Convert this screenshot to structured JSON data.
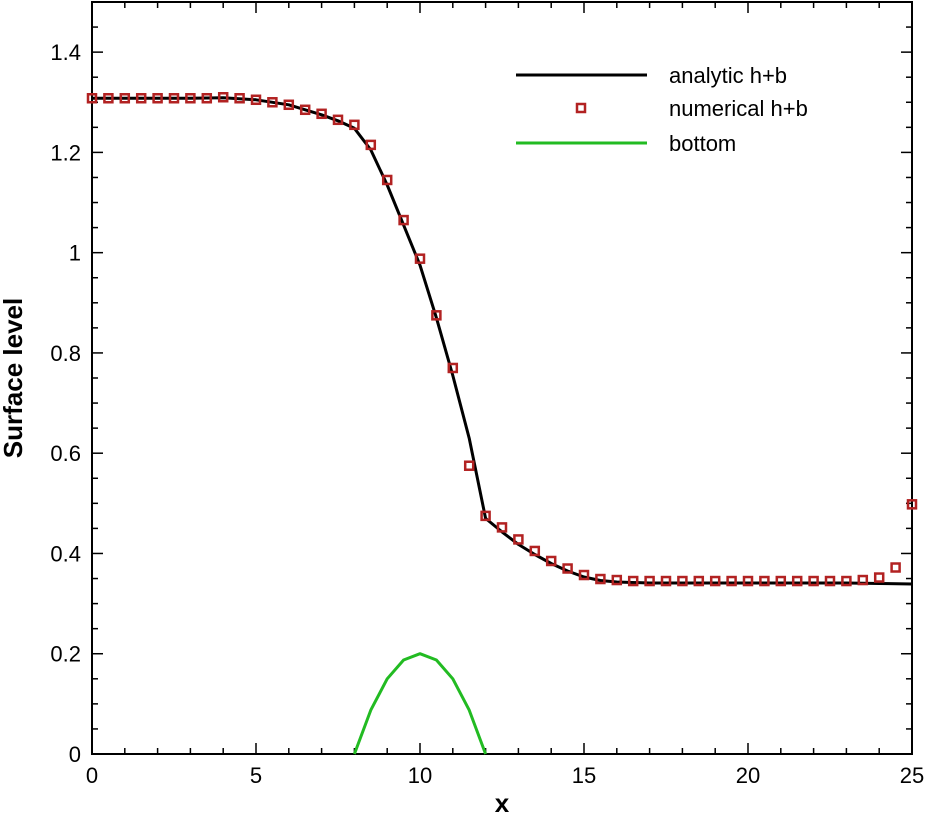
{
  "chart_data": {
    "type": "line",
    "title": "",
    "xlabel": "x",
    "ylabel": "Surface level",
    "xlim": [
      0,
      25
    ],
    "ylim": [
      0,
      1.5
    ],
    "x_ticks": [
      "0",
      "5",
      "10",
      "15",
      "20",
      "25"
    ],
    "y_ticks": [
      "0",
      "0.2",
      "0.4",
      "0.6",
      "0.8",
      "1",
      "1.2",
      "1.4"
    ],
    "grid": false,
    "legend_position": "top-right",
    "series": [
      {
        "name": "analytic h+b",
        "style": "line",
        "color": "#000000",
        "x": [
          0,
          1,
          2,
          3,
          4,
          5,
          6,
          6.5,
          7,
          7.5,
          8,
          8.5,
          9,
          9.5,
          10,
          10.5,
          11,
          11.5,
          12,
          12.5,
          13,
          13.5,
          14,
          14.5,
          15,
          15.5,
          16,
          17,
          18,
          19,
          20,
          21,
          22,
          23,
          24,
          25
        ],
        "y": [
          1.308,
          1.308,
          1.308,
          1.308,
          1.309,
          1.305,
          1.295,
          1.285,
          1.275,
          1.263,
          1.248,
          1.205,
          1.135,
          1.055,
          0.975,
          0.87,
          0.755,
          0.63,
          0.47,
          0.443,
          0.418,
          0.398,
          0.38,
          0.365,
          0.353,
          0.346,
          0.343,
          0.341,
          0.341,
          0.341,
          0.341,
          0.341,
          0.341,
          0.341,
          0.34,
          0.339
        ]
      },
      {
        "name": "numerical h+b",
        "style": "markers",
        "marker": "square",
        "color": "#b22222",
        "x": [
          0,
          0.5,
          1,
          1.5,
          2,
          2.5,
          3,
          3.5,
          4,
          4.5,
          5,
          5.5,
          6,
          6.5,
          7,
          7.5,
          8,
          8.5,
          9,
          9.5,
          10,
          10.5,
          11,
          11.5,
          12,
          12.5,
          13,
          13.5,
          14,
          14.5,
          15,
          15.5,
          16,
          16.5,
          17,
          17.5,
          18,
          18.5,
          19,
          19.5,
          20,
          20.5,
          21,
          21.5,
          22,
          22.5,
          23,
          23.5,
          24,
          24.5,
          25
        ],
        "y": [
          1.308,
          1.308,
          1.308,
          1.308,
          1.308,
          1.308,
          1.308,
          1.308,
          1.31,
          1.308,
          1.305,
          1.3,
          1.295,
          1.285,
          1.277,
          1.265,
          1.255,
          1.215,
          1.145,
          1.065,
          0.988,
          0.875,
          0.77,
          0.575,
          0.475,
          0.452,
          0.428,
          0.405,
          0.385,
          0.37,
          0.357,
          0.349,
          0.347,
          0.345,
          0.345,
          0.345,
          0.345,
          0.345,
          0.345,
          0.345,
          0.345,
          0.345,
          0.345,
          0.345,
          0.345,
          0.345,
          0.345,
          0.347,
          0.352,
          0.372,
          0.498
        ]
      },
      {
        "name": "bottom",
        "style": "line",
        "color": "#22bb22",
        "x": [
          8,
          8.5,
          9,
          9.5,
          10,
          10.5,
          11,
          11.5,
          12
        ],
        "y": [
          0,
          0.0875,
          0.15,
          0.1875,
          0.2,
          0.1875,
          0.15,
          0.0875,
          0
        ]
      }
    ]
  }
}
